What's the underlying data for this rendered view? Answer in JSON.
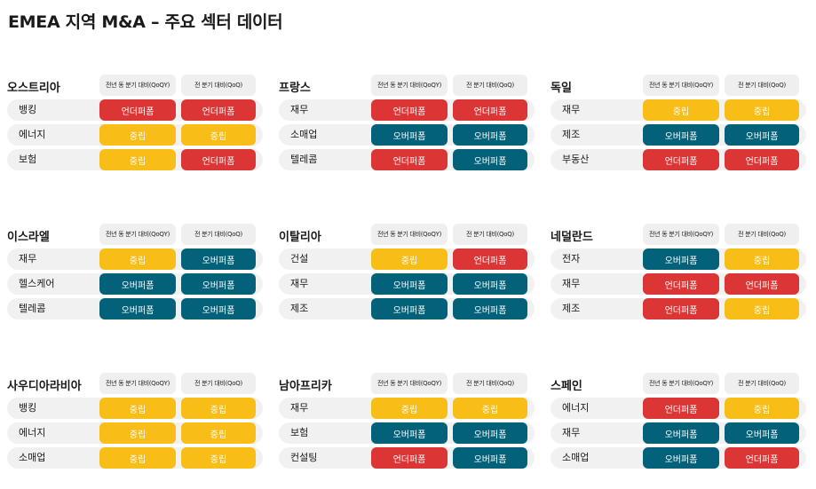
{
  "title": "EMEA 지역 M&A – 주요 섹터 데이터",
  "columns": [
    "전년 동 분기 대비(QoQY)",
    "전 분기 대비(QoQ)"
  ],
  "labels": {
    "under": "언더퍼폼",
    "neutral": "중립",
    "over": "오버퍼폼"
  },
  "colors": {
    "under": "#dc3535",
    "neutral": "#f9bd18",
    "over": "#04617a"
  },
  "panels": [
    {
      "country": "오스트리아",
      "rows": [
        {
          "sector": "뱅킹",
          "yoy": "under",
          "qoq": "under"
        },
        {
          "sector": "에너지",
          "yoy": "neutral",
          "qoq": "neutral"
        },
        {
          "sector": "보험",
          "yoy": "neutral",
          "qoq": "under"
        }
      ]
    },
    {
      "country": "프랑스",
      "rows": [
        {
          "sector": "재무",
          "yoy": "under",
          "qoq": "under"
        },
        {
          "sector": "소매업",
          "yoy": "over",
          "qoq": "over"
        },
        {
          "sector": "텔레콤",
          "yoy": "under",
          "qoq": "over"
        }
      ]
    },
    {
      "country": "독일",
      "rows": [
        {
          "sector": "재무",
          "yoy": "neutral",
          "qoq": "neutral"
        },
        {
          "sector": "제조",
          "yoy": "over",
          "qoq": "over"
        },
        {
          "sector": "부동산",
          "yoy": "under",
          "qoq": "under"
        }
      ]
    },
    {
      "country": "이스라엘",
      "rows": [
        {
          "sector": "재무",
          "yoy": "neutral",
          "qoq": "over"
        },
        {
          "sector": "헬스케어",
          "yoy": "over",
          "qoq": "over"
        },
        {
          "sector": "텔레콤",
          "yoy": "over",
          "qoq": "over"
        }
      ]
    },
    {
      "country": "이탈리아",
      "rows": [
        {
          "sector": "건설",
          "yoy": "neutral",
          "qoq": "under"
        },
        {
          "sector": "재무",
          "yoy": "over",
          "qoq": "over"
        },
        {
          "sector": "제조",
          "yoy": "over",
          "qoq": "over"
        }
      ]
    },
    {
      "country": "네덜란드",
      "rows": [
        {
          "sector": "전자",
          "yoy": "over",
          "qoq": "neutral"
        },
        {
          "sector": "재무",
          "yoy": "under",
          "qoq": "under"
        },
        {
          "sector": "제조",
          "yoy": "under",
          "qoq": "neutral"
        }
      ]
    },
    {
      "country": "사우디아라비아",
      "rows": [
        {
          "sector": "뱅킹",
          "yoy": "neutral",
          "qoq": "neutral"
        },
        {
          "sector": "에너지",
          "yoy": "neutral",
          "qoq": "neutral"
        },
        {
          "sector": "소매업",
          "yoy": "neutral",
          "qoq": "neutral"
        }
      ]
    },
    {
      "country": "남아프리카",
      "rows": [
        {
          "sector": "재무",
          "yoy": "neutral",
          "qoq": "neutral"
        },
        {
          "sector": "보험",
          "yoy": "over",
          "qoq": "over"
        },
        {
          "sector": "컨설팅",
          "yoy": "under",
          "qoq": "over"
        }
      ]
    },
    {
      "country": "스페인",
      "rows": [
        {
          "sector": "에너지",
          "yoy": "under",
          "qoq": "neutral"
        },
        {
          "sector": "재무",
          "yoy": "over",
          "qoq": "over"
        },
        {
          "sector": "소매업",
          "yoy": "over",
          "qoq": "under"
        }
      ]
    }
  ]
}
